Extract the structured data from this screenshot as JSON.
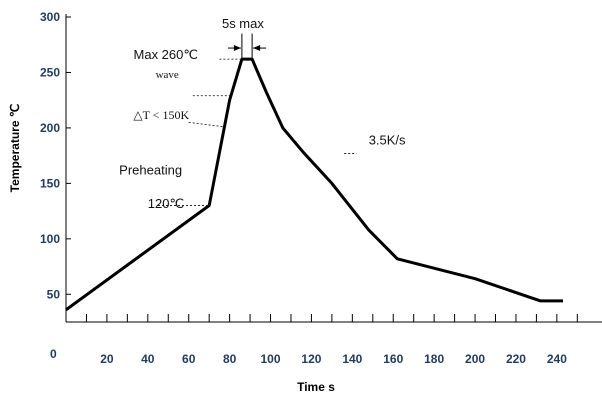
{
  "chart_data": {
    "type": "line",
    "title": "",
    "xlabel": "Time s",
    "ylabel": "Temperature ℃",
    "xlim": [
      0,
      260
    ],
    "ylim": [
      25,
      300
    ],
    "x_ticks": [
      20,
      40,
      60,
      80,
      100,
      120,
      140,
      160,
      180,
      200,
      220,
      240
    ],
    "y_ticks": [
      50,
      100,
      150,
      200,
      250,
      300
    ],
    "origin_label": "0",
    "grid": false,
    "series": [
      {
        "values": [
          {
            "x": 0,
            "y": 36
          },
          {
            "x": 70,
            "y": 130
          },
          {
            "x": 80,
            "y": 225
          },
          {
            "x": 86,
            "y": 262
          },
          {
            "x": 91,
            "y": 262
          },
          {
            "x": 98,
            "y": 232
          },
          {
            "x": 106,
            "y": 200
          },
          {
            "x": 116,
            "y": 178
          },
          {
            "x": 130,
            "y": 150
          },
          {
            "x": 148,
            "y": 108
          },
          {
            "x": 162,
            "y": 82
          },
          {
            "x": 200,
            "y": 64
          },
          {
            "x": 232,
            "y": 44
          },
          {
            "x": 243,
            "y": 44
          }
        ]
      }
    ],
    "annotations": [
      {
        "text": "5s max",
        "x": 88,
        "y": 290
      },
      {
        "text": "Max 260℃",
        "x": 78,
        "y": 262
      },
      {
        "text": "wave",
        "x": 80,
        "y": 245
      },
      {
        "text": "△T < 150K",
        "x": 74,
        "y": 208
      },
      {
        "text": "3.5K/s",
        "x": 148,
        "y": 185
      },
      {
        "text": "Preheating",
        "x": 26,
        "y": 158
      },
      {
        "text": "120℃",
        "x": 40,
        "y": 128
      }
    ]
  }
}
